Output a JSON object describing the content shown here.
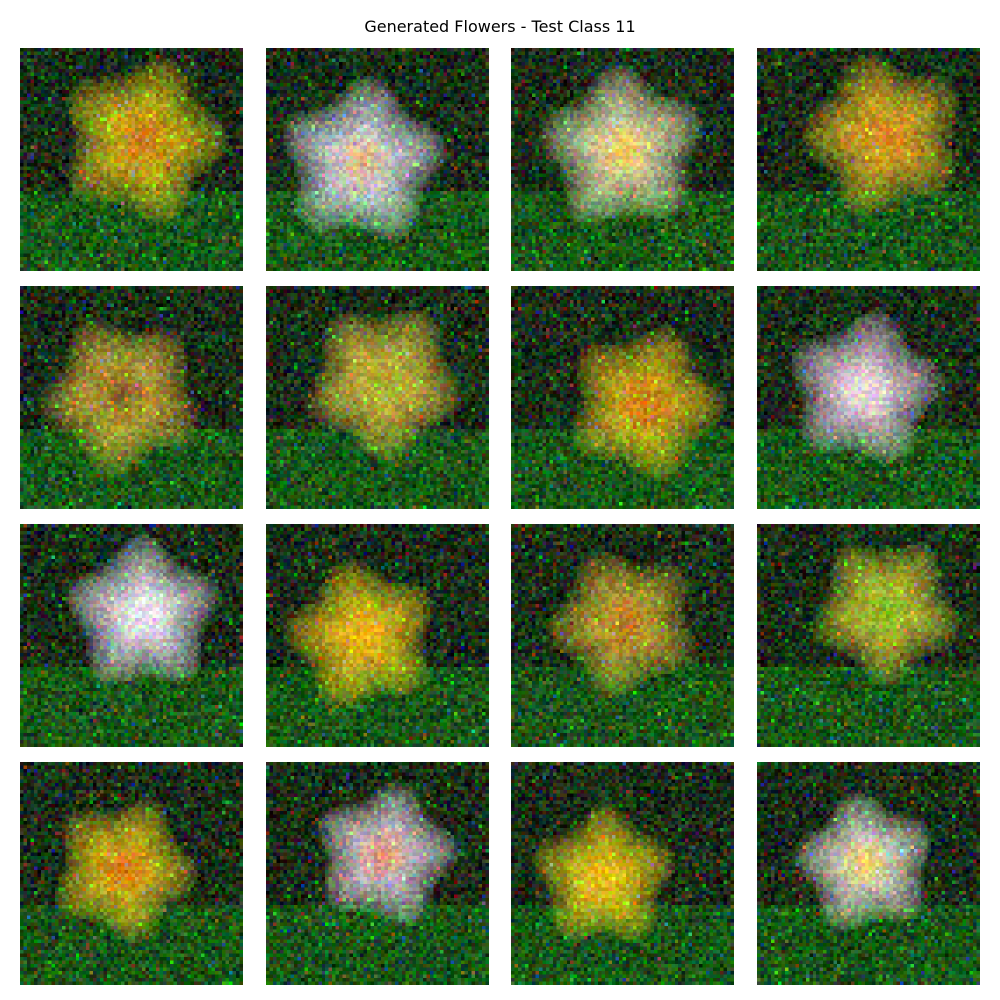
{
  "title": "Generated Flowers - Test Class 11",
  "samples": [
    {
      "row": 1,
      "col": 1,
      "palette": "yellow-orange",
      "main_color": "#f2d21a",
      "center_color": "#b23a10"
    },
    {
      "row": 1,
      "col": 2,
      "palette": "white-pink",
      "main_color": "#f4f0ff",
      "center_color": "#c8a040"
    },
    {
      "row": 1,
      "col": 3,
      "palette": "white-yellow",
      "main_color": "#f5f0c0",
      "center_color": "#e8b820"
    },
    {
      "row": 1,
      "col": 4,
      "palette": "yellow-orange",
      "main_color": "#f2c62a",
      "center_color": "#c85a18"
    },
    {
      "row": 2,
      "col": 1,
      "palette": "yellow-brown",
      "main_color": "#e8c040",
      "center_color": "#3a2a10"
    },
    {
      "row": 2,
      "col": 2,
      "palette": "yellow-green",
      "main_color": "#e8d04a",
      "center_color": "#8a8a20"
    },
    {
      "row": 2,
      "col": 3,
      "palette": "yellow-orange",
      "main_color": "#f0c820",
      "center_color": "#c04a12"
    },
    {
      "row": 2,
      "col": 4,
      "palette": "pink-white",
      "main_color": "#f4d8f0",
      "center_color": "#e6e0d0"
    },
    {
      "row": 3,
      "col": 1,
      "palette": "white-blue",
      "main_color": "#fbf4ff",
      "center_color": "#e8e8e8"
    },
    {
      "row": 3,
      "col": 2,
      "palette": "yellow",
      "main_color": "#fcd81a",
      "center_color": "#e08a14"
    },
    {
      "row": 3,
      "col": 3,
      "palette": "olive-yellow",
      "main_color": "#d8b838",
      "center_color": "#b05418"
    },
    {
      "row": 3,
      "col": 4,
      "palette": "green-yellow",
      "main_color": "#d8d43a",
      "center_color": "#58a818"
    },
    {
      "row": 4,
      "col": 1,
      "palette": "yellow-orange",
      "main_color": "#f2d01c",
      "center_color": "#c84010"
    },
    {
      "row": 4,
      "col": 2,
      "palette": "pink-white",
      "main_color": "#f4e4f0",
      "center_color": "#d06030"
    },
    {
      "row": 4,
      "col": 3,
      "palette": "yellow",
      "main_color": "#f6d81a",
      "center_color": "#e0a818"
    },
    {
      "row": 4,
      "col": 4,
      "palette": "white-yellow",
      "main_color": "#f6f4e6",
      "center_color": "#e8c020"
    }
  ]
}
